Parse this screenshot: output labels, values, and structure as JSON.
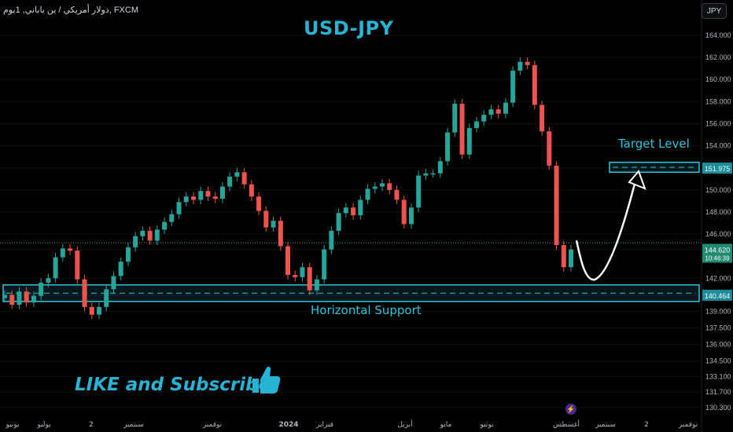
{
  "header": {
    "symbol_line": "دولار أمريكي / ين ياباني, 1يوم, FXCM",
    "currency_button": "JPY"
  },
  "annotations": {
    "title": "USD-JPY",
    "target_label": "Target Level",
    "support_label": "Horizontal Support",
    "cta": "LIKE and Subscribe"
  },
  "colors": {
    "accent": "#26b3d4",
    "bull": "#26a69a",
    "bear": "#ef5350",
    "zone": "#2ec4dc"
  },
  "chart_data": {
    "type": "line",
    "title": "USD-JPY",
    "xlabel": "",
    "ylabel": "",
    "ylim": [
      129.5,
      166.2
    ],
    "y_ticks": [
      "130.300",
      "131.700",
      "133.100",
      "134.500",
      "136.000",
      "137.500",
      "139.000",
      "140.464",
      "142.000",
      "144.620",
      "146.000",
      "148.000",
      "150.000",
      "151.975",
      "154.000",
      "156.000",
      "158.000",
      "160.000",
      "162.000",
      "164.000"
    ],
    "x_ticks": [
      "يونيو",
      "يوليو",
      "2",
      "سبتمبر",
      "نوفمبر",
      "2024",
      "فبراير",
      "أبريل",
      "مايو",
      "يونيو",
      "أغسطس",
      "سبتمبر",
      "2",
      "نوفمبر"
    ],
    "last_price": "144.620",
    "countdown": "10:46:39",
    "target_price": "151.975",
    "support_price": "140.464",
    "target_zone": [
      151.6,
      152.5
    ],
    "support_zone": [
      139.9,
      141.4
    ],
    "series": [
      {
        "values": [
          140.5,
          139.6,
          140.8,
          139.8,
          140.4,
          141.6,
          142.0,
          143.9,
          144.7,
          144.5,
          141.9,
          139.4,
          138.7,
          139.4,
          141.0,
          142.2,
          143.5,
          144.8,
          145.8,
          146.3,
          145.4,
          146.4,
          147.1,
          147.8,
          148.9,
          149.4,
          149.1,
          149.9,
          149.4,
          149.2,
          150.3,
          151.2,
          151.6,
          150.5,
          149.4,
          148.1,
          146.6,
          147.2,
          144.9,
          142.3,
          142.1,
          143.0,
          140.9,
          141.9,
          144.6,
          146.3,
          147.9,
          148.4,
          147.7,
          149.1,
          150.1,
          150.3,
          150.6,
          150.0,
          149.1,
          146.9,
          148.4,
          151.3,
          151.5,
          151.5,
          152.6,
          155.2,
          157.8,
          153.2,
          155.6,
          156.2,
          156.8,
          157.3,
          156.9,
          157.9,
          160.8,
          161.6,
          161.3,
          157.7,
          155.3,
          152.2,
          145.0,
          143.0,
          144.6
        ]
      }
    ]
  }
}
